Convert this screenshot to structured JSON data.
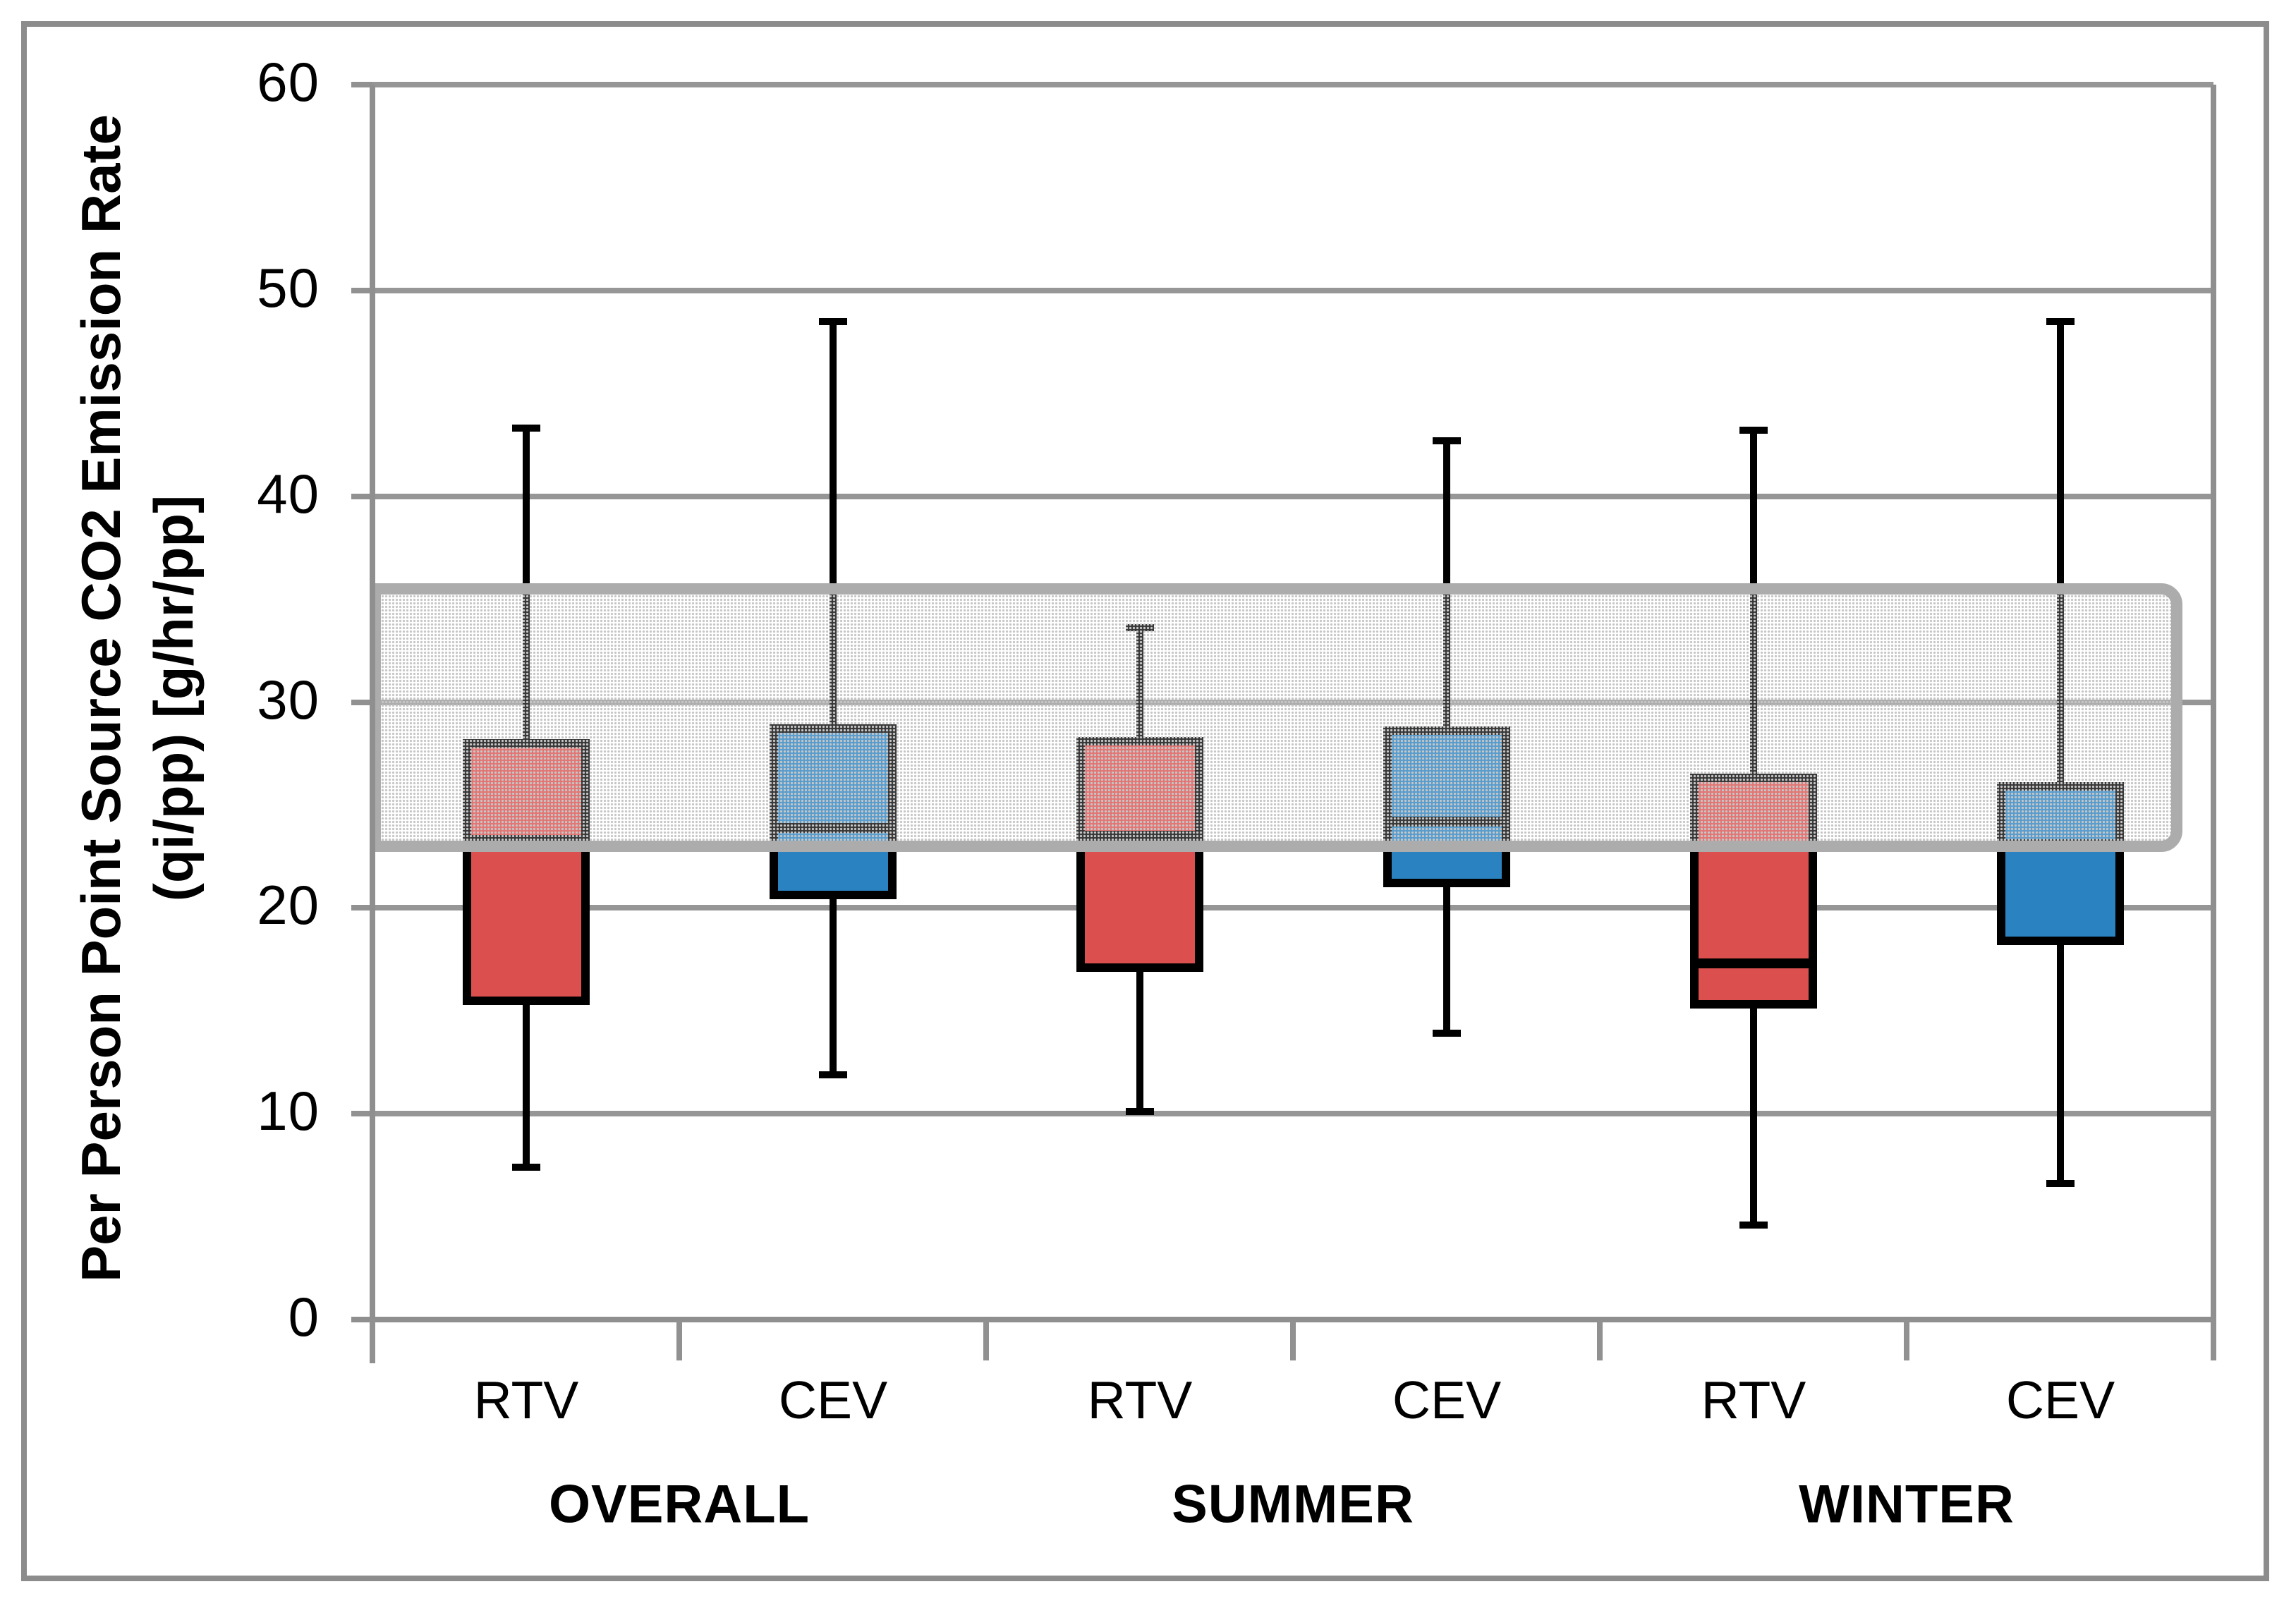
{
  "chart_data": {
    "type": "box",
    "title": "",
    "ylabel_line1": "Per Person Point Source CO2 Emission Rate",
    "ylabel_line2": "(qi/pp) [g/hr/pp]",
    "ylim": [
      0,
      60
    ],
    "y_ticks": [
      60,
      50,
      40,
      30,
      20,
      10,
      0
    ],
    "grid": "horizontal",
    "groups": [
      "OVERALL",
      "SUMMER",
      "WINTER"
    ],
    "series_labels": [
      "RTV",
      "CEV"
    ],
    "reference_band": {
      "low": 23.0,
      "high": 35.5,
      "style": "dotted-fill",
      "border_color": "#acacac"
    },
    "boxes": [
      {
        "group": "OVERALL",
        "vent": "RTV",
        "whisker_low": 7.4,
        "q1": 15.5,
        "median": 23.3,
        "q3": 28.0,
        "whisker_high": 43.3,
        "color": "#db504e"
      },
      {
        "group": "OVERALL",
        "vent": "CEV",
        "whisker_low": 11.9,
        "q1": 20.6,
        "median": 23.9,
        "q3": 28.7,
        "whisker_high": 48.5,
        "color": "#2a82c0"
      },
      {
        "group": "SUMMER",
        "vent": "RTV",
        "whisker_low": 10.1,
        "q1": 17.1,
        "median": 23.5,
        "q3": 28.1,
        "whisker_high": 33.6,
        "color": "#db504e"
      },
      {
        "group": "SUMMER",
        "vent": "CEV",
        "whisker_low": 13.9,
        "q1": 21.2,
        "median": 24.2,
        "q3": 28.6,
        "whisker_high": 42.7,
        "color": "#2a82c0"
      },
      {
        "group": "WINTER",
        "vent": "RTV",
        "whisker_low": 4.6,
        "q1": 15.3,
        "median": 17.3,
        "q3": 26.3,
        "whisker_high": 43.2,
        "color": "#db504e"
      },
      {
        "group": "WINTER",
        "vent": "CEV",
        "whisker_low": 6.6,
        "q1": 18.4,
        "median": 23.1,
        "q3": 25.9,
        "whisker_high": 48.5,
        "color": "#2a82c0"
      }
    ],
    "colors": {
      "rtv_fill": "#db504e",
      "cev_fill": "#2a82c0",
      "box_border": "#000000",
      "gridline": "#969696",
      "axis": "#8f8f8f",
      "band_border": "#acacac",
      "outer_border": "#8c8c8c"
    },
    "legend_position": "none"
  }
}
